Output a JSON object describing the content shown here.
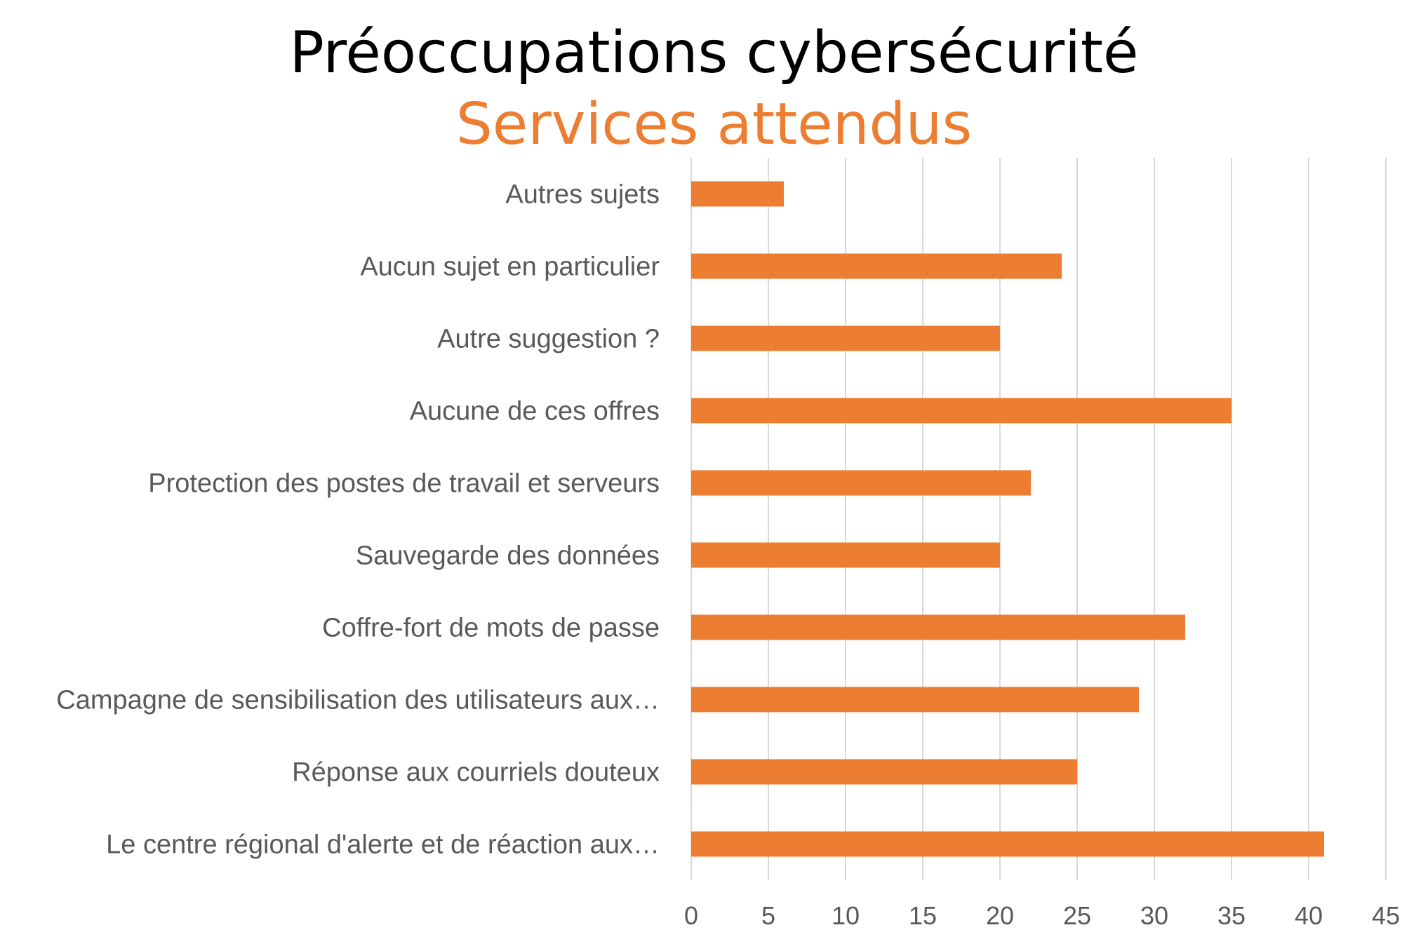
{
  "chart_data": {
    "type": "bar",
    "orientation": "horizontal",
    "title": "Préoccupations cybersécurité",
    "subtitle": "Services attendus",
    "categories": [
      "Autres sujets",
      "Aucun sujet en particulier",
      "Autre suggestion ?",
      "Aucune de ces offres",
      "Protection des postes de travail et serveurs",
      "Sauvegarde des données",
      "Coffre-fort de mots de passe",
      "Campagne de sensibilisation des utilisateurs aux…",
      "Réponse aux courriels douteux",
      "Le centre régional d'alerte et de réaction aux…"
    ],
    "values": [
      6,
      24,
      20,
      35,
      22,
      20,
      32,
      29,
      25,
      41
    ],
    "xlim": [
      0,
      45
    ],
    "xticks": [
      0,
      5,
      10,
      15,
      20,
      25,
      30,
      35,
      40,
      45
    ],
    "xlabel": "",
    "ylabel": "",
    "grid": "vertical",
    "legend": "none",
    "colors": {
      "bar": "#ED7D31",
      "subtitle": "#ED7D31",
      "title": "#000000",
      "grid": "#D9D9D9",
      "text": "#595959"
    }
  }
}
